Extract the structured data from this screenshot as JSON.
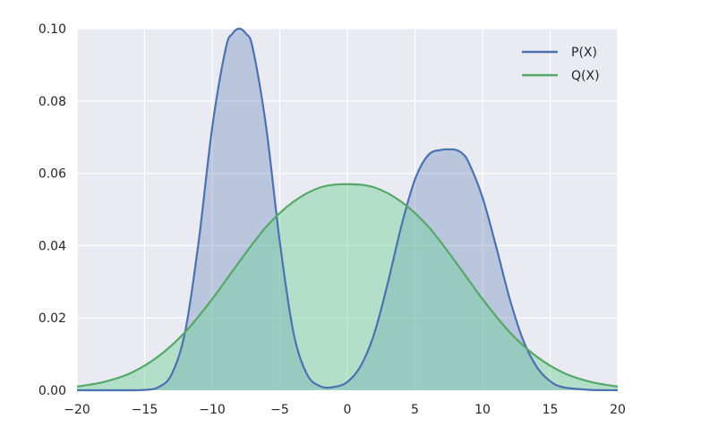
{
  "chart_data": {
    "type": "line",
    "title": "",
    "xlabel": "",
    "ylabel": "",
    "xlim": [
      -20,
      20
    ],
    "ylim": [
      0,
      0.1
    ],
    "x_ticks": [
      -20,
      -15,
      -10,
      -5,
      0,
      5,
      10,
      15,
      20
    ],
    "y_ticks": [
      0.0,
      0.02,
      0.04,
      0.06,
      0.08,
      0.1
    ],
    "x_tick_labels": [
      "−20",
      "−15",
      "−10",
      "−5",
      "0",
      "5",
      "10",
      "15",
      "20"
    ],
    "y_tick_labels": [
      "0.00",
      "0.02",
      "0.04",
      "0.06",
      "0.08",
      "0.10"
    ],
    "grid": true,
    "legend_position": "top-right",
    "background_color": "#eaeaf2",
    "series": [
      {
        "name": "P(X)",
        "color": "#4c72b0",
        "fill_color": "#4c72b0",
        "filled": true,
        "x": [
          -20,
          -18,
          -16,
          -15,
          -14,
          -13,
          -12,
          -11,
          -10,
          -9,
          -8.5,
          -8,
          -7.5,
          -7,
          -6,
          -5,
          -4,
          -3,
          -2,
          -1,
          0,
          1,
          2,
          3,
          4,
          5,
          6,
          7,
          7.5,
          8,
          8.5,
          9,
          10,
          11,
          12,
          13,
          14,
          15,
          16,
          18,
          20
        ],
        "values": [
          0.0,
          0.0,
          0.0,
          0.0001,
          0.0008,
          0.0044,
          0.0162,
          0.0411,
          0.0726,
          0.0945,
          0.0986,
          0.1,
          0.0986,
          0.0946,
          0.0726,
          0.0411,
          0.0162,
          0.0045,
          0.0011,
          0.0009,
          0.0023,
          0.0068,
          0.0158,
          0.0298,
          0.0455,
          0.0583,
          0.0651,
          0.0665,
          0.0666,
          0.0665,
          0.0655,
          0.0628,
          0.0533,
          0.0398,
          0.0254,
          0.0139,
          0.0065,
          0.0025,
          0.0008,
          0.0001,
          0.0
        ]
      },
      {
        "name": "Q(X)",
        "color": "#55a868",
        "fill_color": "#6fd09a",
        "filled": true,
        "x": [
          -20,
          -18,
          -16,
          -14,
          -12,
          -10,
          -8,
          -6,
          -4,
          -2,
          0,
          2,
          4,
          6,
          8,
          10,
          12,
          14,
          16,
          18,
          20
        ],
        "values": [
          0.001,
          0.0023,
          0.0048,
          0.0093,
          0.0161,
          0.0252,
          0.0355,
          0.0452,
          0.0521,
          0.0561,
          0.057,
          0.0561,
          0.0521,
          0.0452,
          0.0355,
          0.0252,
          0.0161,
          0.0093,
          0.0048,
          0.0023,
          0.001
        ]
      }
    ]
  }
}
